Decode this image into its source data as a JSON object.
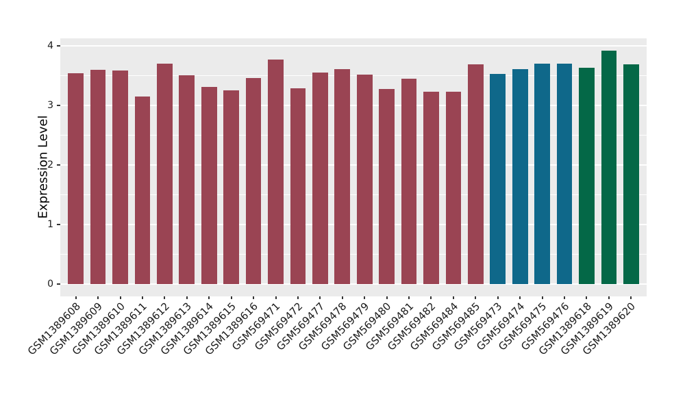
{
  "chart_data": {
    "type": "bar",
    "title": "",
    "xlabel": "",
    "ylabel": "Expression Level",
    "ylim": [
      -0.21,
      4.13
    ],
    "yticks": [
      0,
      1,
      2,
      3,
      4
    ],
    "minor_gridlines": [
      0.5,
      1.5,
      2.5,
      3.5
    ],
    "grid": "on",
    "legend": "none",
    "panel_bg": "#ebebeb",
    "grid_color": "#ffffff",
    "categories": [
      "GSM1389608",
      "GSM1389609",
      "GSM1389610",
      "GSM1389611",
      "GSM1389612",
      "GSM1389613",
      "GSM1389614",
      "GSM1389615",
      "GSM1389616",
      "GSM569471",
      "GSM569472",
      "GSM569477",
      "GSM569478",
      "GSM569479",
      "GSM569480",
      "GSM569481",
      "GSM569482",
      "GSM569484",
      "GSM569485",
      "GSM569473",
      "GSM569474",
      "GSM569475",
      "GSM569476",
      "GSM1389618",
      "GSM1389619",
      "GSM1389620"
    ],
    "values": [
      3.55,
      3.6,
      3.59,
      3.16,
      3.71,
      3.51,
      3.32,
      3.26,
      3.47,
      3.78,
      3.29,
      3.56,
      3.61,
      3.52,
      3.28,
      3.45,
      3.23,
      3.23,
      3.69,
      3.54,
      3.62,
      3.71,
      3.71,
      3.64,
      3.92,
      3.69
    ],
    "groups": [
      "maroon",
      "maroon",
      "maroon",
      "maroon",
      "maroon",
      "maroon",
      "maroon",
      "maroon",
      "maroon",
      "maroon",
      "maroon",
      "maroon",
      "maroon",
      "maroon",
      "maroon",
      "maroon",
      "maroon",
      "maroon",
      "maroon",
      "teal",
      "teal",
      "teal",
      "teal",
      "green",
      "green",
      "green"
    ],
    "group_colors": {
      "maroon": "#9a4453",
      "teal": "#0f688a",
      "green": "#046847"
    }
  }
}
